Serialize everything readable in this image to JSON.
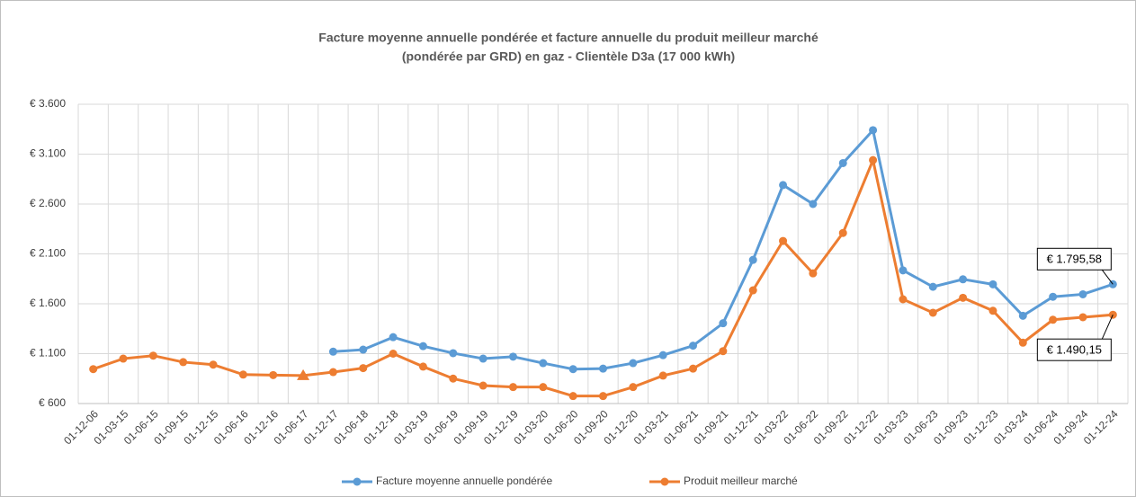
{
  "chart_data": {
    "type": "line",
    "title": [
      "Facture moyenne annuelle pondérée et facture annuelle du produit meilleur marché",
      "(pondérée par GRD) en gaz - Clientèle D3a (17 000 kWh)"
    ],
    "categories": [
      "01-12-06",
      "01-03-15",
      "01-06-15",
      "01-09-15",
      "01-12-15",
      "01-06-16",
      "01-12-16",
      "01-06-17",
      "01-12-17",
      "01-06-18",
      "01-12-18",
      "01-03-19",
      "01-06-19",
      "01-09-19",
      "01-12-19",
      "01-03-20",
      "01-06-20",
      "01-09-20",
      "01-12-20",
      "01-03-21",
      "01-06-21",
      "01-09-21",
      "01-12-21",
      "01-03-22",
      "01-06-22",
      "01-09-22",
      "01-12-22",
      "01-03-23",
      "01-06-23",
      "01-09-23",
      "01-12-23",
      "01-03-24",
      "01-06-24",
      "01-09-24",
      "01-12-24"
    ],
    "series": [
      {
        "name": "Facture moyenne annuelle pondérée",
        "color": "#5b9bd5",
        "values": [
          null,
          null,
          null,
          null,
          null,
          null,
          null,
          null,
          1120,
          1140,
          1265,
          1175,
          1105,
          1050,
          1070,
          1005,
          945,
          950,
          1005,
          1085,
          1180,
          1405,
          2040,
          2790,
          2600,
          3010,
          3340,
          1935,
          1770,
          1845,
          1795,
          1480,
          1670,
          1695,
          1795.58
        ],
        "value_labels": [
          null,
          null,
          null,
          null,
          null,
          null,
          null,
          null,
          null,
          null,
          null,
          null,
          null,
          null,
          null,
          null,
          null,
          null,
          null,
          null,
          null,
          null,
          null,
          null,
          null,
          null,
          null,
          null,
          null,
          null,
          null,
          null,
          null,
          null,
          "€ 1.795,58"
        ]
      },
      {
        "name": "Produit meilleur marché",
        "color": "#ed7d31",
        "values": [
          945,
          1050,
          1080,
          1015,
          990,
          890,
          885,
          880,
          915,
          955,
          1100,
          970,
          850,
          780,
          765,
          765,
          675,
          675,
          765,
          880,
          950,
          1125,
          1735,
          2230,
          1905,
          2310,
          3040,
          1645,
          1510,
          1660,
          1530,
          1210,
          1440,
          1465,
          1490.15
        ],
        "value_labels": [
          null,
          null,
          null,
          null,
          null,
          null,
          null,
          null,
          null,
          null,
          null,
          null,
          null,
          null,
          null,
          null,
          null,
          null,
          null,
          null,
          null,
          null,
          null,
          null,
          null,
          null,
          null,
          null,
          null,
          null,
          null,
          null,
          null,
          null,
          "€ 1.490,15"
        ],
        "marker_overrides": [
          {
            "index": 7,
            "shape": "triangle"
          }
        ]
      }
    ],
    "ylim": [
      600,
      3600
    ],
    "yticks": [
      {
        "value": 600,
        "label": "€ 600"
      },
      {
        "value": 1100,
        "label": "€ 1.100"
      },
      {
        "value": 1600,
        "label": "€ 1.600"
      },
      {
        "value": 2100,
        "label": "€ 2.100"
      },
      {
        "value": 2600,
        "label": "€ 2.600"
      },
      {
        "value": 3100,
        "label": "€ 3.100"
      },
      {
        "value": 3600,
        "label": "€ 3.600"
      }
    ],
    "grid": true,
    "legend": "bottom"
  }
}
